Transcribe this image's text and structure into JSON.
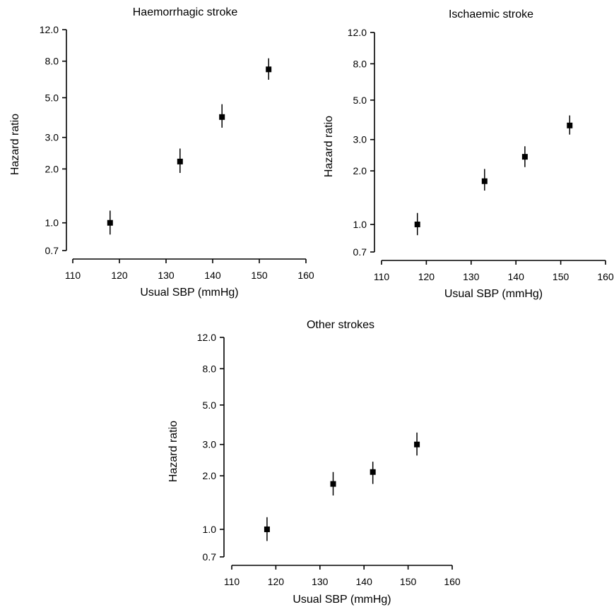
{
  "chart_data": [
    {
      "type": "scatter",
      "title": "Haemorrhagic stroke",
      "xlabel": "Usual SBP (mmHg)",
      "ylabel": "Hazard ratio",
      "y_scale": "log",
      "xlim": [
        110,
        160
      ],
      "ylim": [
        0.7,
        12.0
      ],
      "xticks": [
        110,
        120,
        130,
        140,
        150,
        160
      ],
      "yticks": [
        "12.0",
        "8.0",
        "5.0",
        "3.0",
        "2.0",
        "1.0",
        "0.7"
      ],
      "points": [
        {
          "x": 118,
          "y": 1.0,
          "lo": 0.86,
          "hi": 1.17
        },
        {
          "x": 133,
          "y": 2.2,
          "lo": 1.9,
          "hi": 2.6
        },
        {
          "x": 142,
          "y": 3.9,
          "lo": 3.4,
          "hi": 4.6
        },
        {
          "x": 152,
          "y": 7.2,
          "lo": 6.3,
          "hi": 8.3
        }
      ]
    },
    {
      "type": "scatter",
      "title": "Ischaemic stroke",
      "xlabel": "Usual SBP (mmHg)",
      "ylabel": "Hazard ratio",
      "y_scale": "log",
      "xlim": [
        110,
        160
      ],
      "ylim": [
        0.7,
        12.0
      ],
      "xticks": [
        110,
        120,
        130,
        140,
        150,
        160
      ],
      "yticks": [
        "12.0",
        "8.0",
        "5.0",
        "3.0",
        "2.0",
        "1.0",
        "0.7"
      ],
      "points": [
        {
          "x": 118,
          "y": 1.0,
          "lo": 0.87,
          "hi": 1.16
        },
        {
          "x": 133,
          "y": 1.75,
          "lo": 1.55,
          "hi": 2.05
        },
        {
          "x": 142,
          "y": 2.4,
          "lo": 2.1,
          "hi": 2.75
        },
        {
          "x": 152,
          "y": 3.6,
          "lo": 3.2,
          "hi": 4.1
        }
      ]
    },
    {
      "type": "scatter",
      "title": "Other strokes",
      "xlabel": "Usual SBP (mmHg)",
      "ylabel": "Hazard ratio",
      "y_scale": "log",
      "xlim": [
        110,
        160
      ],
      "ylim": [
        0.7,
        12.0
      ],
      "xticks": [
        110,
        120,
        130,
        140,
        150,
        160
      ],
      "yticks": [
        "12.0",
        "8.0",
        "5.0",
        "3.0",
        "2.0",
        "1.0",
        "0.7"
      ],
      "points": [
        {
          "x": 118,
          "y": 1.0,
          "lo": 0.86,
          "hi": 1.17
        },
        {
          "x": 133,
          "y": 1.8,
          "lo": 1.55,
          "hi": 2.1
        },
        {
          "x": 142,
          "y": 2.1,
          "lo": 1.8,
          "hi": 2.4
        },
        {
          "x": 152,
          "y": 3.0,
          "lo": 2.6,
          "hi": 3.5
        }
      ]
    }
  ]
}
